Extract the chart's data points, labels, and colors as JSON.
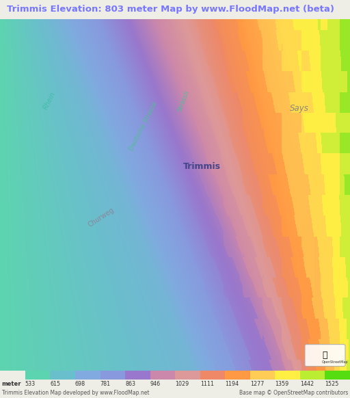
{
  "title": "Trimmis Elevation: 803 meter Map by www.FloodMap.net (beta)",
  "title_color": "#7777ff",
  "title_bg": "#eeede6",
  "bottom_text_left": "Trimmis Elevation Map developed by www.FloodMap.net",
  "bottom_text_right": "Base map © OpenStreetMap contributors",
  "colorbar_labels": [
    "meter",
    "533",
    "615",
    "698",
    "781",
    "863",
    "946",
    "1029",
    "1111",
    "1194",
    "1277",
    "1359",
    "1442",
    "1525"
  ],
  "colorbar_colors": [
    "#5dd4b0",
    "#6abfcc",
    "#80aae0",
    "#8899dd",
    "#9977cc",
    "#cc88aa",
    "#dd9999",
    "#ee8866",
    "#ff9944",
    "#ffcc55",
    "#ffee44",
    "#bbee33",
    "#55dd11"
  ],
  "fig_width": 5.12,
  "fig_height": 5.82,
  "dpi": 100
}
